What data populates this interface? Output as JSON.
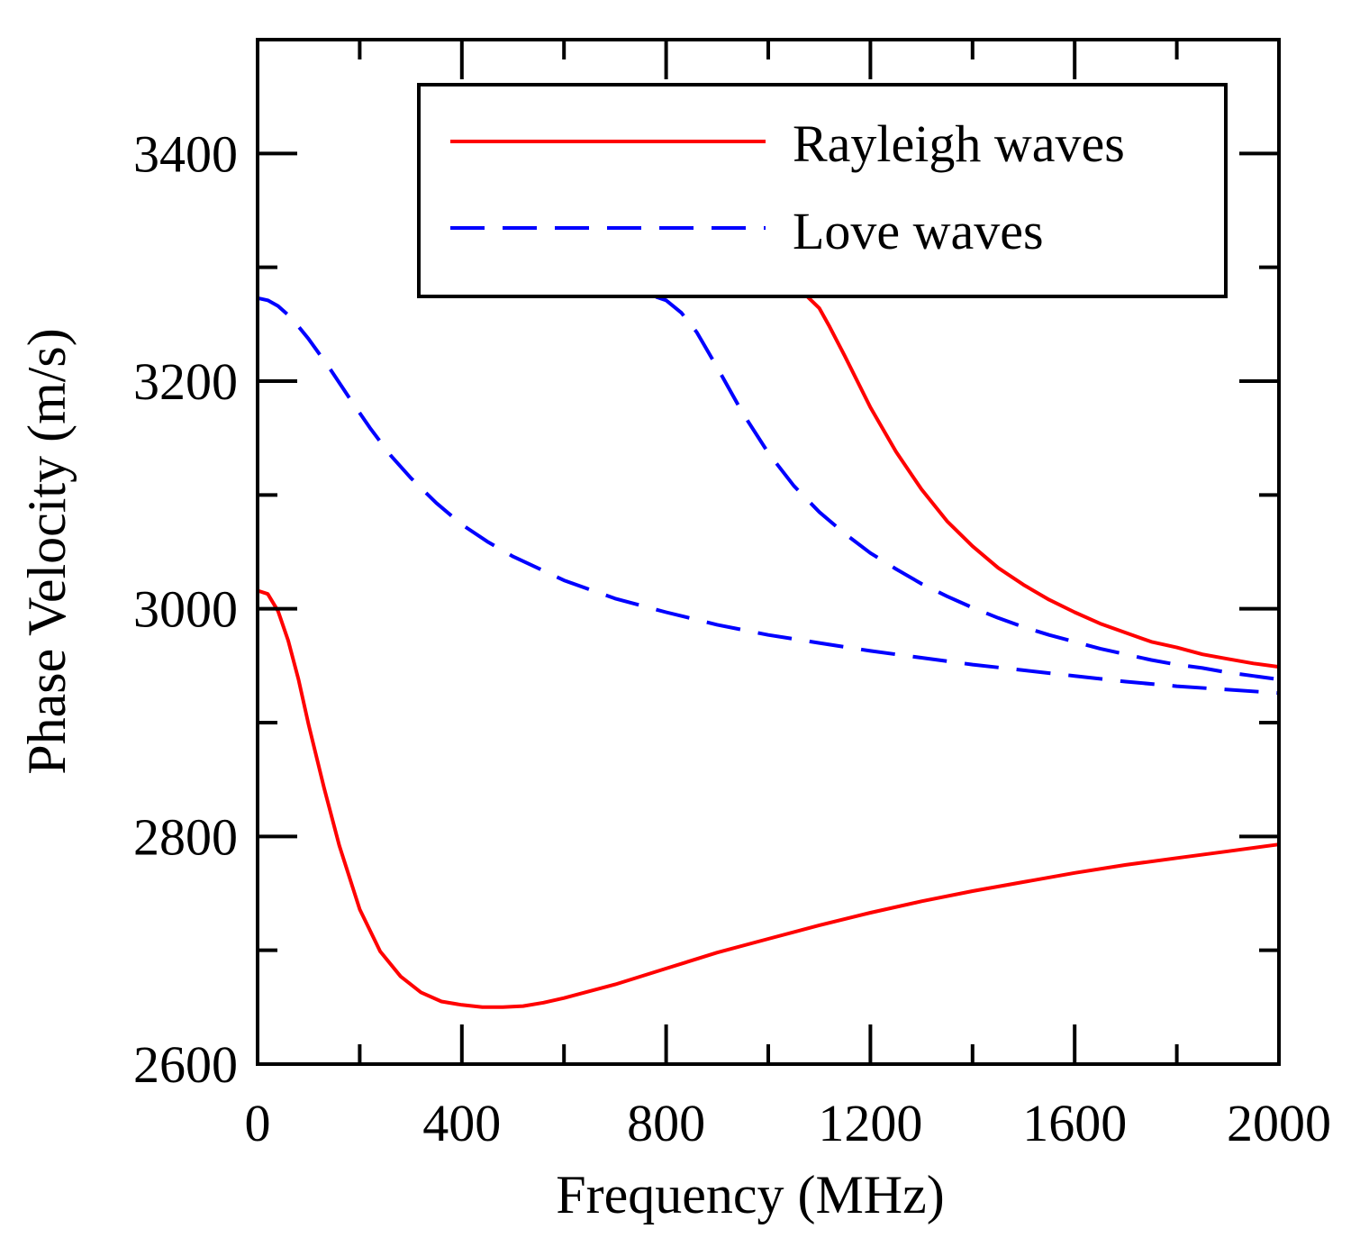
{
  "chart_data": {
    "type": "line",
    "title": "",
    "xlabel": "Frequency (MHz)",
    "ylabel": "Phase Velocity (m/s)",
    "xlim": [
      0,
      2000
    ],
    "ylim": [
      2600,
      3500
    ],
    "x_ticks": [
      0,
      400,
      800,
      1200,
      1600,
      2000
    ],
    "x_tick_labels": [
      "0",
      "400",
      "800",
      "1200",
      "1600",
      "2000"
    ],
    "x_minor_step": 200,
    "y_ticks": [
      2600,
      2800,
      3000,
      3200,
      3400
    ],
    "y_tick_labels": [
      "2600",
      "2800",
      "3000",
      "3200",
      "3400"
    ],
    "y_minor_step": 100,
    "grid": false,
    "legend_position": "top-right",
    "series": [
      {
        "name": "Rayleigh waves",
        "legend_label": "Rayleigh waves",
        "color": "#ff0000",
        "style": "solid",
        "segments": [
          {
            "x": [
              0,
              20,
              40,
              60,
              80,
              100,
              130,
              160,
              200,
              240,
              280,
              320,
              360,
              400,
              440,
              480,
              520,
              560,
              600,
              700,
              800,
              900,
              1000,
              1100,
              1200,
              1300,
              1400,
              1500,
              1600,
              1700,
              1800,
              1900,
              2000
            ],
            "y": [
              3016,
              3013,
              2998,
              2972,
              2938,
              2898,
              2843,
              2792,
              2736,
              2699,
              2677,
              2663,
              2655,
              2652,
              2650,
              2650,
              2651,
              2654,
              2658,
              2670,
              2684,
              2698,
              2710,
              2722,
              2733,
              2743,
              2752,
              2760,
              2768,
              2775,
              2781,
              2787,
              2793
            ]
          },
          {
            "x": [
              1075,
              1100,
              1120,
              1150,
              1200,
              1250,
              1300,
              1350,
              1400,
              1450,
              1500,
              1550,
              1600,
              1650,
              1700,
              1750,
              1800,
              1850,
              1900,
              1950,
              2000
            ],
            "y": [
              3275,
              3264,
              3248,
              3222,
              3177,
              3138,
              3105,
              3077,
              3055,
              3036,
              3021,
              3008,
              2997,
              2987,
              2979,
              2971,
              2966,
              2960,
              2956,
              2952,
              2949
            ]
          }
        ]
      },
      {
        "name": "Love waves",
        "legend_label": "Love waves",
        "color": "#0000ff",
        "style": "dashed",
        "segments": [
          {
            "x": [
              0,
              20,
              40,
              60,
              80,
              100,
              140,
              180,
              220,
              260,
              300,
              350,
              400,
              450,
              500,
              600,
              700,
              800,
              900,
              1000,
              1100,
              1200,
              1300,
              1400,
              1500,
              1600,
              1700,
              1800,
              1900,
              2000
            ],
            "y": [
              3273,
              3271,
              3266,
              3258,
              3248,
              3237,
              3212,
              3185,
              3159,
              3135,
              3115,
              3093,
              3074,
              3059,
              3046,
              3025,
              3009,
              2997,
              2986,
              2977,
              2970,
              2963,
              2957,
              2951,
              2946,
              2941,
              2936,
              2932,
              2929,
              2926
            ]
          },
          {
            "x": [
              780,
              800,
              830,
              860,
              900,
              950,
              1000,
              1050,
              1100,
              1150,
              1200,
              1250,
              1300,
              1350,
              1400,
              1450,
              1500,
              1550,
              1600,
              1650,
              1700,
              1750,
              1800,
              1850,
              1900,
              1950,
              2000
            ],
            "y": [
              3274,
              3271,
              3260,
              3243,
              3212,
              3172,
              3137,
              3108,
              3085,
              3066,
              3049,
              3035,
              3022,
              3011,
              3001,
              2992,
              2984,
              2977,
              2971,
              2965,
              2960,
              2955,
              2951,
              2948,
              2944,
              2941,
              2938
            ]
          }
        ]
      }
    ]
  }
}
